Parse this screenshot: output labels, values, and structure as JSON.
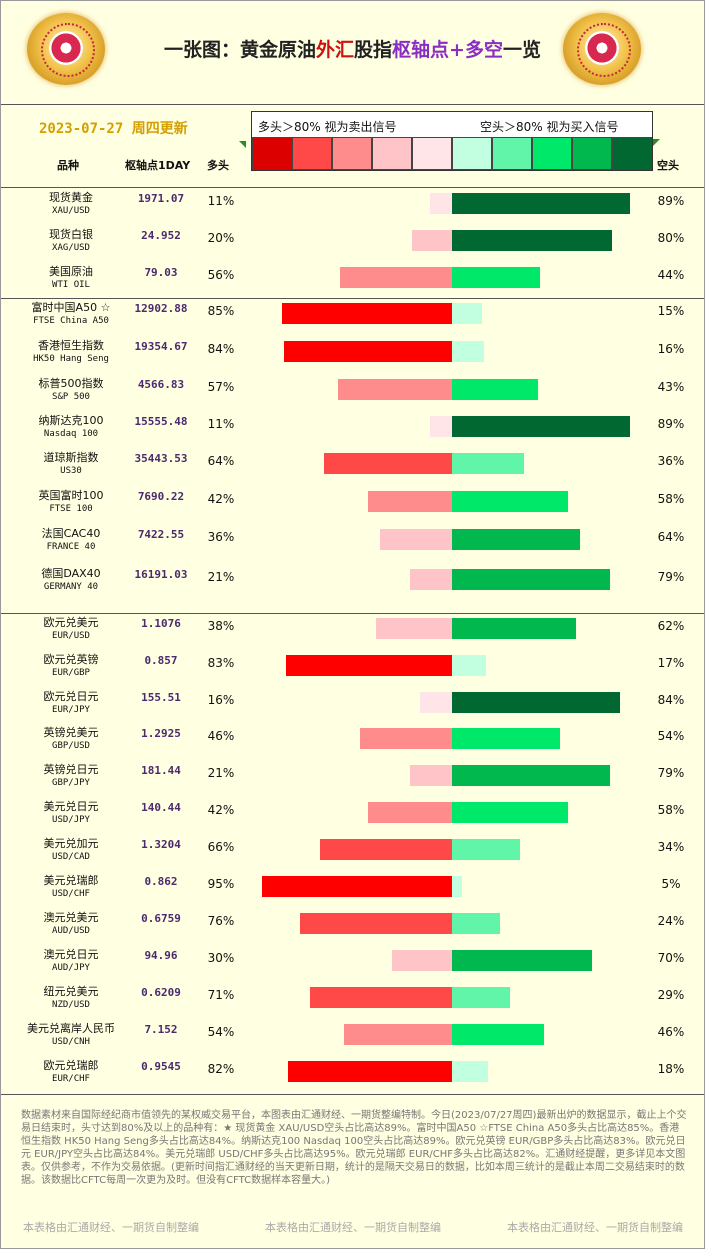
{
  "title": {
    "part1": "一张图：黄金原油",
    "part2": "外汇",
    "part3": "股指",
    "part4": "枢轴点+多空",
    "part5": "一览"
  },
  "date": "2023-07-27 周四更新",
  "legend": {
    "left": "多头＞80% 视为卖出信号",
    "right": "空头＞80% 视为买入信号"
  },
  "swatch_colors": [
    "#dd0000",
    "#ff4848",
    "#ff8c8c",
    "#ffc4c8",
    "#ffe4e8",
    "#c2ffe0",
    "#60f5a8",
    "#00e86a",
    "#00b84e",
    "#006830"
  ],
  "headers": {
    "name": "品种",
    "pivot": "枢轴点1DAY",
    "long": "多头",
    "short": "空头"
  },
  "chart_data": {
    "type": "bar",
    "orientation": "horizontal-diverging",
    "categories": [
      "现货黄金 XAU/USD",
      "现货白银 XAG/USD",
      "美国原油 WTI OIL",
      "富时中国A50 ☆ FTSE China A50",
      "香港恒生指数 HK50 Hang Seng",
      "标普500指数 S&P 500",
      "纳斯达克100 Nasdaq 100",
      "道琼斯指数 US30",
      "英国富时100 FTSE 100",
      "法国CAC40 FRANCE 40",
      "德国DAX40 GERMANY 40",
      "欧元兑美元 EUR/USD",
      "欧元兑英镑 EUR/GBP",
      "欧元兑日元 EUR/JPY",
      "英镑兑美元 GBP/USD",
      "英镑兑日元 GBP/JPY",
      "美元兑日元 USD/JPY",
      "美元兑加元 USD/CAD",
      "美元兑瑞郎 USD/CHF",
      "澳元兑美元 AUD/USD",
      "澳元兑日元 AUD/JPY",
      "纽元兑美元 NZD/USD",
      "美元兑离岸人民币 USD/CNH",
      "欧元兑瑞郎 EUR/CHF"
    ],
    "series": [
      {
        "name": "多头",
        "values": [
          11,
          20,
          56,
          85,
          84,
          57,
          11,
          64,
          42,
          36,
          21,
          38,
          83,
          16,
          46,
          21,
          42,
          66,
          95,
          76,
          30,
          71,
          54,
          82
        ]
      },
      {
        "name": "空头",
        "values": [
          89,
          80,
          44,
          15,
          16,
          43,
          89,
          36,
          58,
          64,
          79,
          62,
          17,
          84,
          54,
          79,
          58,
          34,
          5,
          24,
          70,
          29,
          46,
          18
        ]
      }
    ],
    "xlim": [
      0,
      100
    ]
  },
  "rows": [
    {
      "cn": "现货黄金",
      "en": "XAU/USD",
      "pivot": "1971.07",
      "long": "11%",
      "short": "89%"
    },
    {
      "cn": "现货白银",
      "en": "XAG/USD",
      "pivot": "24.952",
      "long": "20%",
      "short": "80%"
    },
    {
      "cn": "美国原油",
      "en": "WTI OIL",
      "pivot": "79.03",
      "long": "56%",
      "short": "44%"
    },
    {
      "cn": "富时中国A50 ☆",
      "en": "FTSE China A50",
      "pivot": "12902.88",
      "long": "85%",
      "short": "15%"
    },
    {
      "cn": "香港恒生指数",
      "en": "HK50 Hang Seng",
      "pivot": "19354.67",
      "long": "84%",
      "short": "16%"
    },
    {
      "cn": "标普500指数",
      "en": "S&P 500",
      "pivot": "4566.83",
      "long": "57%",
      "short": "43%"
    },
    {
      "cn": "纳斯达克100",
      "en": "Nasdaq 100",
      "pivot": "15555.48",
      "long": "11%",
      "short": "89%"
    },
    {
      "cn": "道琼斯指数",
      "en": "US30",
      "pivot": "35443.53",
      "long": "64%",
      "short": "36%"
    },
    {
      "cn": "英国富时100",
      "en": "FTSE 100",
      "pivot": "7690.22",
      "long": "42%",
      "short": "58%"
    },
    {
      "cn": "法国CAC40",
      "en": "FRANCE 40",
      "pivot": "7422.55",
      "long": "36%",
      "short": "64%"
    },
    {
      "cn": "德国DAX40",
      "en": "GERMANY 40",
      "pivot": "16191.03",
      "long": "21%",
      "short": "79%"
    },
    {
      "cn": "欧元兑美元",
      "en": "EUR/USD",
      "pivot": "1.1076",
      "long": "38%",
      "short": "62%"
    },
    {
      "cn": "欧元兑英镑",
      "en": "EUR/GBP",
      "pivot": "0.857",
      "long": "83%",
      "short": "17%"
    },
    {
      "cn": "欧元兑日元",
      "en": "EUR/JPY",
      "pivot": "155.51",
      "long": "16%",
      "short": "84%"
    },
    {
      "cn": "英镑兑美元",
      "en": "GBP/USD",
      "pivot": "1.2925",
      "long": "46%",
      "short": "54%"
    },
    {
      "cn": "英镑兑日元",
      "en": "GBP/JPY",
      "pivot": "181.44",
      "long": "21%",
      "short": "79%"
    },
    {
      "cn": "美元兑日元",
      "en": "USD/JPY",
      "pivot": "140.44",
      "long": "42%",
      "short": "58%"
    },
    {
      "cn": "美元兑加元",
      "en": "USD/CAD",
      "pivot": "1.3204",
      "long": "66%",
      "short": "34%"
    },
    {
      "cn": "美元兑瑞郎",
      "en": "USD/CHF",
      "pivot": "0.862",
      "long": "95%",
      "short": "5%"
    },
    {
      "cn": "澳元兑美元",
      "en": "AUD/USD",
      "pivot": "0.6759",
      "long": "76%",
      "short": "24%"
    },
    {
      "cn": "澳元兑日元",
      "en": "AUD/JPY",
      "pivot": "94.96",
      "long": "30%",
      "short": "70%"
    },
    {
      "cn": "纽元兑美元",
      "en": "NZD/USD",
      "pivot": "0.6209",
      "long": "71%",
      "short": "29%"
    },
    {
      "cn": "美元兑离岸人民币",
      "en": "USD/CNH",
      "pivot": "7.152",
      "long": "54%",
      "short": "46%"
    },
    {
      "cn": "欧元兑瑞郎",
      "en": "EUR/CHF",
      "pivot": "0.9545",
      "long": "82%",
      "short": "18%"
    }
  ],
  "note": "数据素材来自国际经纪商市值领先的某权威交易平台，本图表由汇通财经、一期货整编特制。今日(2023/07/27周四)最新出炉的数据显示，截止上个交易日结束时，头寸达到80%及以上的品种有：★ 现货黄金 XAU/USD空头占比高达89%。富时中国A50 ☆FTSE China A50多头占比高达85%。香港恒生指数 HK50 Hang Seng多头占比高达84%。纳斯达克100 Nasdaq 100空头占比高达89%。欧元兑英镑 EUR/GBP多头占比高达83%。欧元兑日元 EUR/JPY空头占比高达84%。美元兑瑞郎 USD/CHF多头占比高达95%。欧元兑瑞郎 EUR/CHF多头占比高达82%。汇通财经提醒，更多详见本文图表。仅供参考，不作为交易依据。(更新时间指汇通财经的当天更新日期，统计的是隔天交易日的数据，比如本周三统计的是截止本周二交易结束时的数据。该数据比CFTC每周一次更为及时。但没有CFTC数据样本容量大。)",
  "footer": "本表格由汇通财经、一期货自制整编"
}
